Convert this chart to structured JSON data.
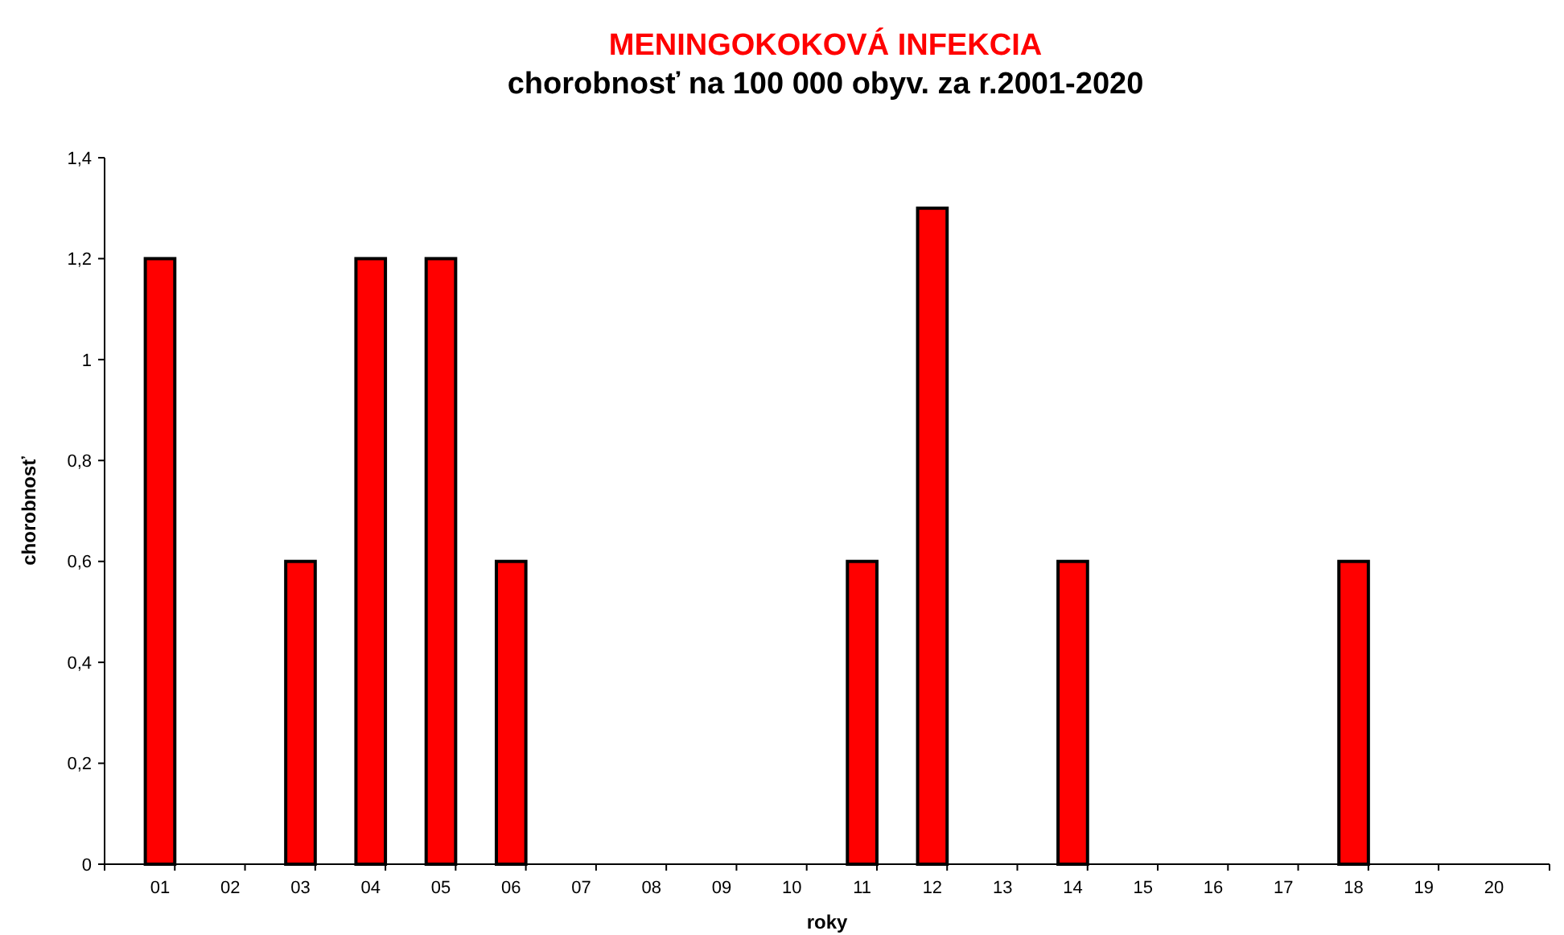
{
  "chart_data": {
    "type": "bar",
    "title": "MENINGOKOKOVÁ INFEKCIA",
    "subtitle": "chorobnosť na 100 000 obyv. za r.2001-2020",
    "xlabel": "roky",
    "ylabel": "chorobnosť",
    "categories": [
      "01",
      "02",
      "03",
      "04",
      "05",
      "06",
      "07",
      "08",
      "09",
      "10",
      "11",
      "12",
      "13",
      "14",
      "15",
      "16",
      "17",
      "18",
      "19",
      "20"
    ],
    "values": [
      1.2,
      0,
      0.6,
      1.2,
      1.2,
      0.6,
      0,
      0,
      0,
      0,
      0.6,
      1.3,
      0,
      0.6,
      0,
      0,
      0,
      0.6,
      0,
      0
    ],
    "color": "#ff0000",
    "ylim": [
      0,
      1.4
    ],
    "yticks": [
      0,
      {
        "value": 0.2,
        "label": "0,2"
      },
      {
        "value": 0.4,
        "label": "0,4"
      },
      {
        "value": 0.6,
        "label": "0,6"
      },
      {
        "value": 0.8,
        "label": "0,8"
      },
      1,
      {
        "value": 1.2,
        "label": "1,2"
      },
      {
        "value": 1.4,
        "label": "1,4"
      }
    ],
    "grid": false
  }
}
